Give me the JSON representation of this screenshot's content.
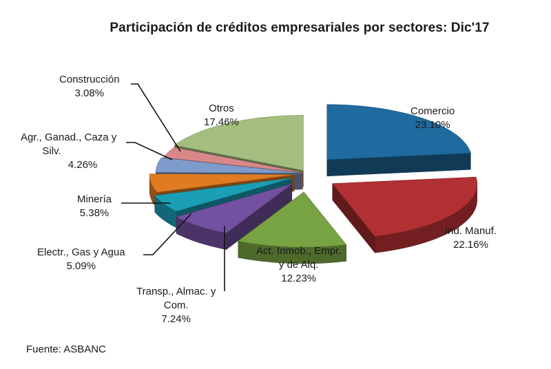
{
  "chart_data": {
    "type": "pie",
    "title": "Participación de créditos empresariales por sectores: Dic'17",
    "slices": [
      {
        "label": "Comercio",
        "value": 23.1,
        "value_label": "23.10%",
        "color": "#1f6a9e"
      },
      {
        "label": "Ind. Manuf.",
        "value": 22.16,
        "value_label": "22.16%",
        "color": "#b13033"
      },
      {
        "label": "Act. Inmob., Empr. y de Alq.",
        "value": 12.23,
        "value_label": "12.23%",
        "color": "#77a342"
      },
      {
        "label": "Transp., Almac. y Com.",
        "value": 7.24,
        "value_label": "7.24%",
        "color": "#7350a0"
      },
      {
        "label": "Electr., Gas y Agua",
        "value": 5.09,
        "value_label": "5.09%",
        "color": "#1a9fb5"
      },
      {
        "label": "Minería",
        "value": 5.38,
        "value_label": "5.38%",
        "color": "#e07b22"
      },
      {
        "label": "Agr., Ganad., Caza y Silv.",
        "value": 4.26,
        "value_label": "4.26%",
        "color": "#7e9bcc"
      },
      {
        "label": "Construcción",
        "value": 3.08,
        "value_label": "3.08%",
        "color": "#d9888a"
      },
      {
        "label": "Otros",
        "value": 17.46,
        "value_label": "17.46%",
        "color": "#a3be7e"
      }
    ],
    "labels": {
      "comercio": {
        "name": "Comercio",
        "pct": "23.10%"
      },
      "ind": {
        "name": "Ind. Manuf.",
        "pct": "22.16%"
      },
      "act": {
        "line1": "Act. Inmob., Empr.",
        "line2": "y de Alq.",
        "pct": "12.23%"
      },
      "transp": {
        "line1": "Transp., Almac. y",
        "line2": "Com.",
        "pct": "7.24%"
      },
      "electr": {
        "name": "Electr., Gas y Agua",
        "pct": "5.09%"
      },
      "mineria": {
        "name": "Minería",
        "pct": "5.38%"
      },
      "agr": {
        "line1": "Agr., Ganad., Caza y",
        "line2": "Silv.",
        "pct": "4.26%"
      },
      "constr": {
        "name": "Construcción",
        "pct": "3.08%"
      },
      "otros": {
        "name": "Otros",
        "pct": "17.46%"
      }
    }
  },
  "source": "Fuente: ASBANC"
}
